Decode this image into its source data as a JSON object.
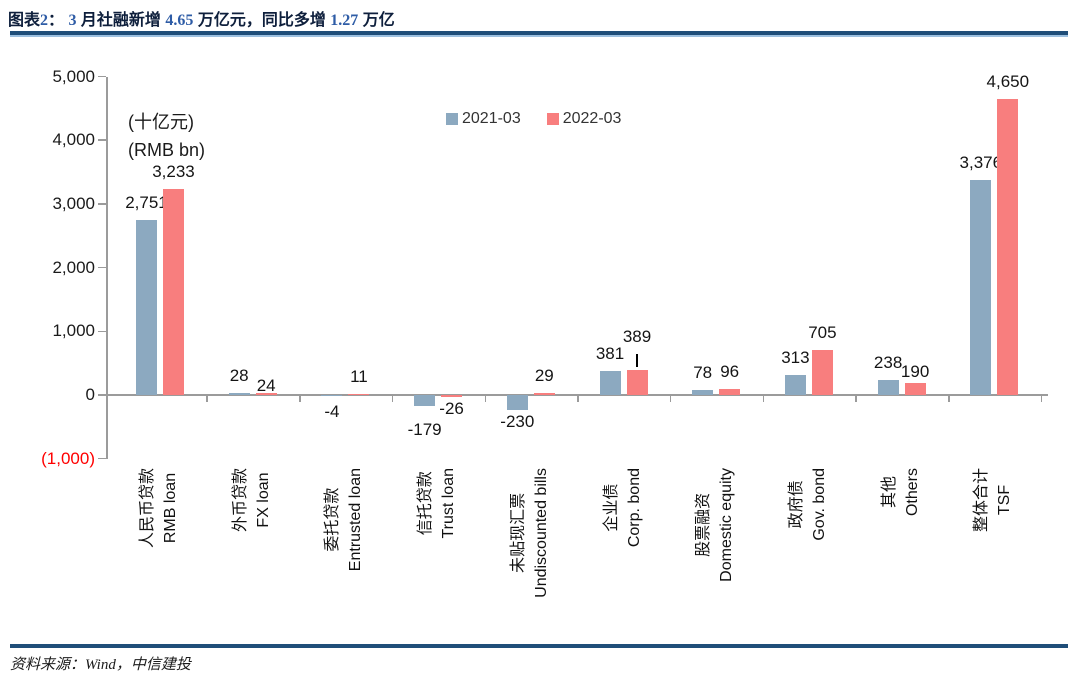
{
  "header": {
    "title_segments": [
      {
        "t": "图表",
        "c": "dark"
      },
      {
        "t": "2",
        "c": "num"
      },
      {
        "t": "：  ",
        "c": "dark"
      },
      {
        "t": "3",
        "c": "num"
      },
      {
        "t": " 月社融新增 ",
        "c": "dark"
      },
      {
        "t": "4.65",
        "c": "num"
      },
      {
        "t": " 万亿元，同比多增 ",
        "c": "dark"
      },
      {
        "t": "1.27",
        "c": "num"
      },
      {
        "t": " 万亿",
        "c": "dark"
      }
    ],
    "title_text": "图表2： 3 月社融新增 4.65 万亿元，同比多增 1.27 万亿"
  },
  "chart_data": {
    "type": "bar",
    "title": "3 月社融新增 4.65 万亿元，同比多增 1.27 万亿",
    "unit_label_cn": "(十亿元)",
    "unit_label_en": "(RMB bn)",
    "legend_position": "top-center",
    "grid": false,
    "ylim": [
      -1000,
      5000
    ],
    "y_axis": {
      "ticks": [
        {
          "label": "5,000",
          "value": 5000
        },
        {
          "label": "4,000",
          "value": 4000
        },
        {
          "label": "3,000",
          "value": 3000
        },
        {
          "label": "2,000",
          "value": 2000
        },
        {
          "label": "1,000",
          "value": 1000
        },
        {
          "label": "0",
          "value": 0
        },
        {
          "label": "(1,000)",
          "value": -1000,
          "color": "#ff0000"
        }
      ]
    },
    "categories": [
      {
        "cn": "人民币贷款",
        "en": "RMB loan"
      },
      {
        "cn": "外币贷款",
        "en": "FX loan"
      },
      {
        "cn": "委托贷款",
        "en": "Entrusted loan"
      },
      {
        "cn": "信托贷款",
        "en": "Trust loan"
      },
      {
        "cn": "未贴现汇票",
        "en": "Undiscounted bills"
      },
      {
        "cn": "企业债",
        "en": "Corp. bond"
      },
      {
        "cn": "股票融资",
        "en": "Domestic equity"
      },
      {
        "cn": "政府债",
        "en": "Gov. bond"
      },
      {
        "cn": "其他",
        "en": "Others"
      },
      {
        "cn": "整体合计",
        "en": "TSF"
      }
    ],
    "series": [
      {
        "name": "2021-03",
        "color": "#8ca9c0",
        "values": [
          2751,
          28,
          -4,
          -179,
          -230,
          381,
          78,
          313,
          238,
          3376
        ],
        "labels": [
          "2,751",
          "28",
          "-4",
          "-179",
          "-230",
          "381",
          "78",
          "313",
          "238",
          "3,376"
        ],
        "label_dy": [
          0,
          0,
          4,
          12,
          0,
          0,
          0,
          0,
          0,
          0
        ]
      },
      {
        "name": "2022-03",
        "color": "#f87e7e",
        "values": [
          3233,
          24,
          11,
          -26,
          29,
          389,
          96,
          705,
          190,
          4650
        ],
        "labels": [
          "3,233",
          "24",
          "11",
          "-26",
          "29",
          "389",
          "96",
          "705",
          "190",
          "4,650"
        ],
        "label_dy": [
          0,
          10,
          0,
          0,
          0,
          -16,
          0,
          0,
          6,
          0
        ]
      }
    ],
    "annotation_leader": {
      "series": 1,
      "index": 5
    }
  },
  "footer": {
    "source": "资料来源：Wind，中信建投"
  }
}
